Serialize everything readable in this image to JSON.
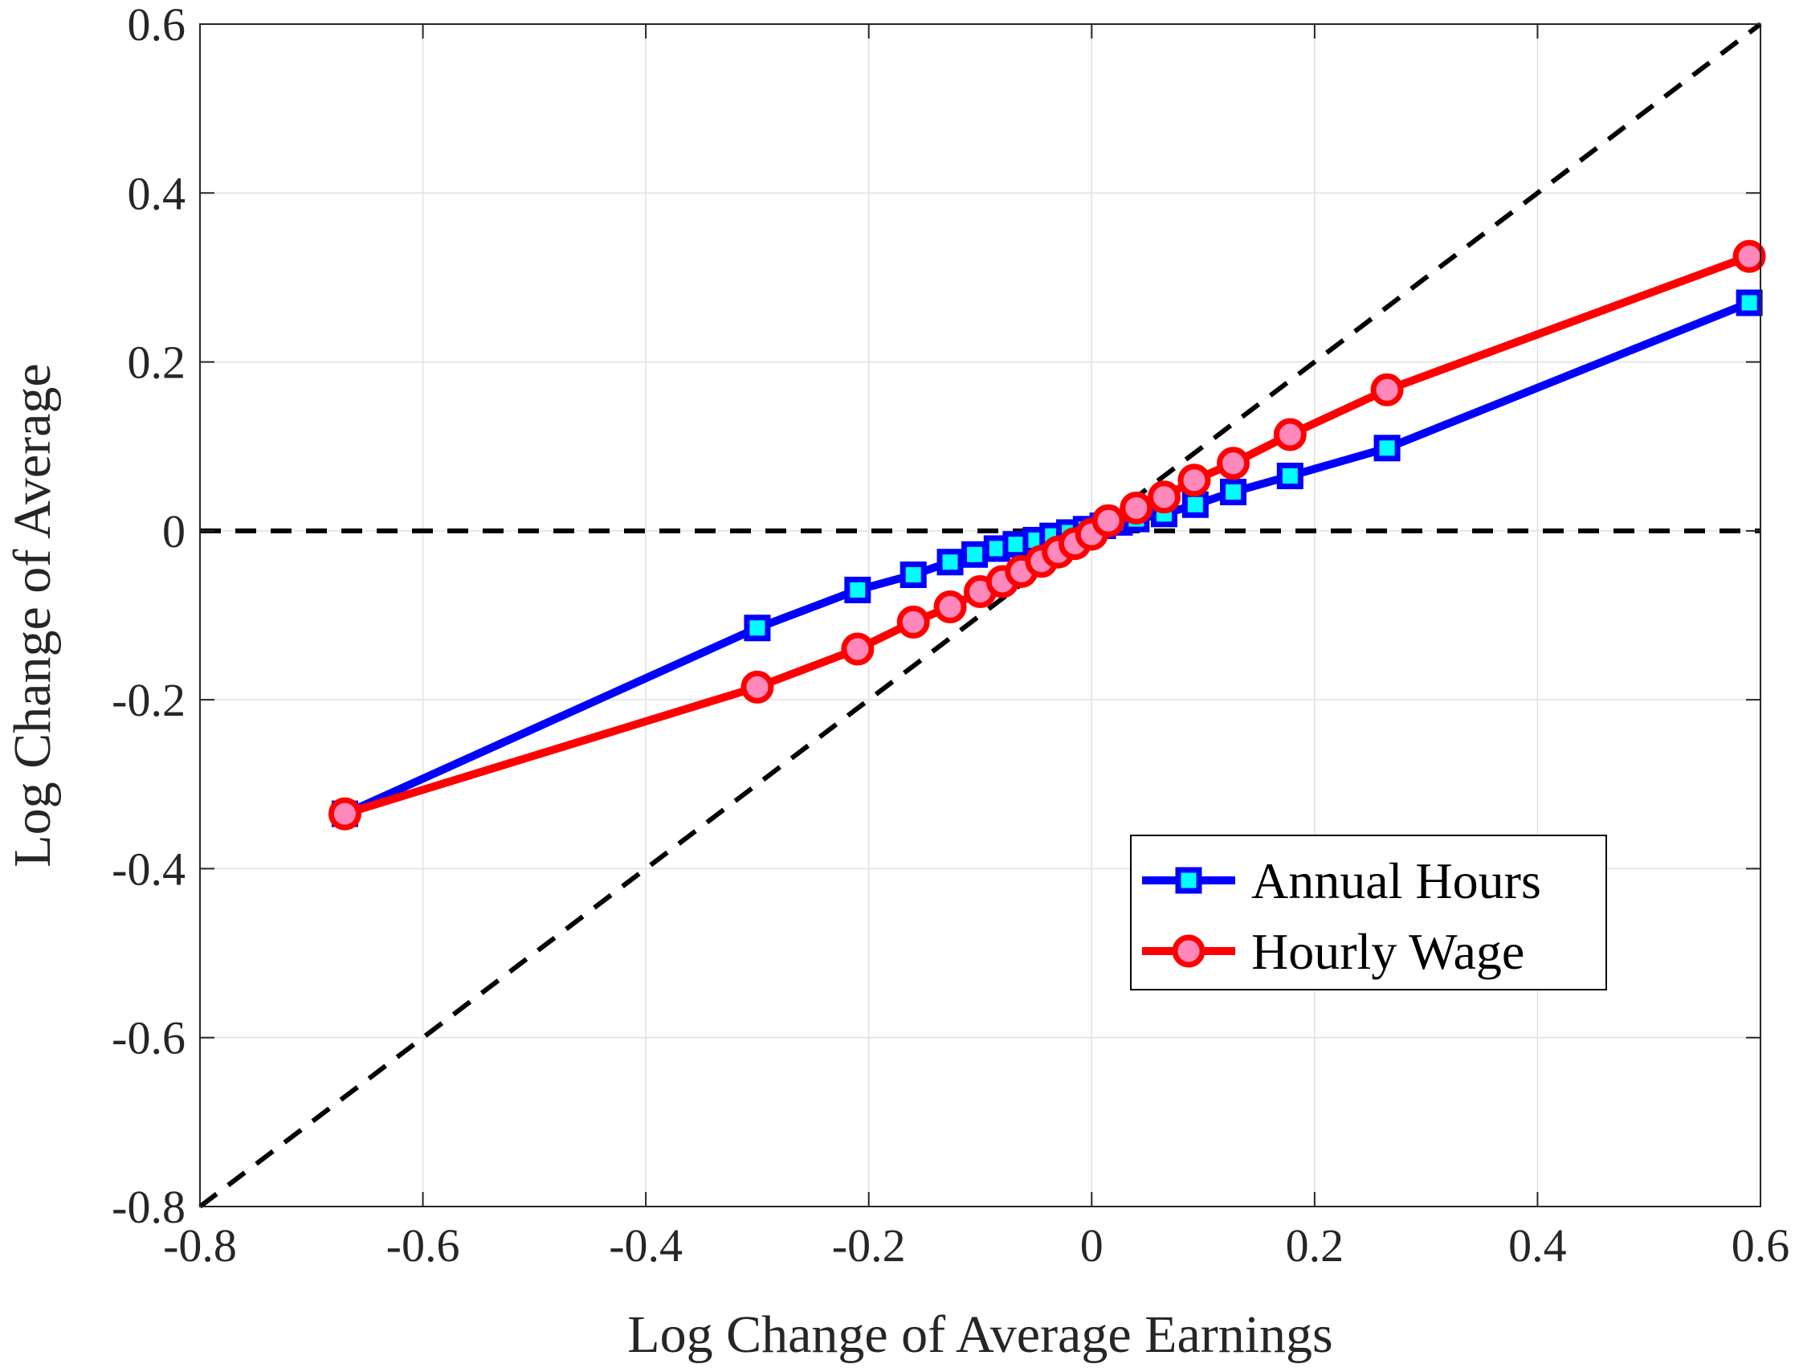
{
  "chart_data": {
    "type": "line",
    "xlabel": "Log Change of Average Earnings",
    "ylabel": "Log Change of Average",
    "xlim": [
      -0.8,
      0.6
    ],
    "ylim": [
      -0.8,
      0.6
    ],
    "xticks": [
      -0.8,
      -0.6,
      -0.4,
      -0.2,
      0,
      0.2,
      0.4,
      0.6
    ],
    "yticks": [
      -0.8,
      -0.6,
      -0.4,
      -0.2,
      0,
      0.2,
      0.4,
      0.6
    ],
    "xtick_labels": [
      "-0.8",
      "-0.6",
      "-0.4",
      "-0.2",
      "0",
      "0.2",
      "0.4",
      "0.6"
    ],
    "ytick_labels": [
      "-0.8",
      "-0.6",
      "-0.4",
      "-0.2",
      "0",
      "0.2",
      "0.4",
      "0.6"
    ],
    "grid": true,
    "legend_position": "bottom-right",
    "reference_lines": [
      {
        "name": "45-degree line",
        "from": [
          -0.8,
          -0.8
        ],
        "to": [
          0.6,
          0.6
        ],
        "style": "dashed",
        "color": "#000000"
      },
      {
        "name": "zero line",
        "from": [
          -0.8,
          0
        ],
        "to": [
          0.6,
          0
        ],
        "style": "dashed",
        "color": "#000000"
      }
    ],
    "series": [
      {
        "name": "Annual Hours",
        "color": "#0000ff",
        "marker": "square",
        "marker_fill": "#00ffff",
        "x": [
          -0.67,
          -0.3,
          -0.21,
          -0.16,
          -0.127,
          -0.105,
          -0.085,
          -0.068,
          -0.05,
          -0.035,
          -0.02,
          -0.005,
          0.01,
          0.025,
          0.04,
          0.065,
          0.093,
          0.127,
          0.178,
          0.265,
          0.59
        ],
        "y": [
          -0.335,
          -0.115,
          -0.07,
          -0.052,
          -0.037,
          -0.028,
          -0.021,
          -0.016,
          -0.011,
          -0.006,
          -0.002,
          0.002,
          0.006,
          0.01,
          0.014,
          0.02,
          0.031,
          0.046,
          0.065,
          0.098,
          0.27
        ]
      },
      {
        "name": "Hourly Wage",
        "color": "#ff0000",
        "marker": "circle",
        "marker_fill": "#ff88bb",
        "x": [
          -0.67,
          -0.3,
          -0.21,
          -0.16,
          -0.127,
          -0.1,
          -0.08,
          -0.063,
          -0.045,
          -0.03,
          -0.015,
          0.0,
          0.015,
          0.04,
          0.065,
          0.092,
          0.127,
          0.178,
          0.265,
          0.59
        ],
        "y": [
          -0.335,
          -0.185,
          -0.14,
          -0.108,
          -0.09,
          -0.072,
          -0.06,
          -0.048,
          -0.036,
          -0.025,
          -0.015,
          -0.004,
          0.012,
          0.027,
          0.04,
          0.06,
          0.08,
          0.114,
          0.167,
          0.325
        ]
      }
    ]
  }
}
